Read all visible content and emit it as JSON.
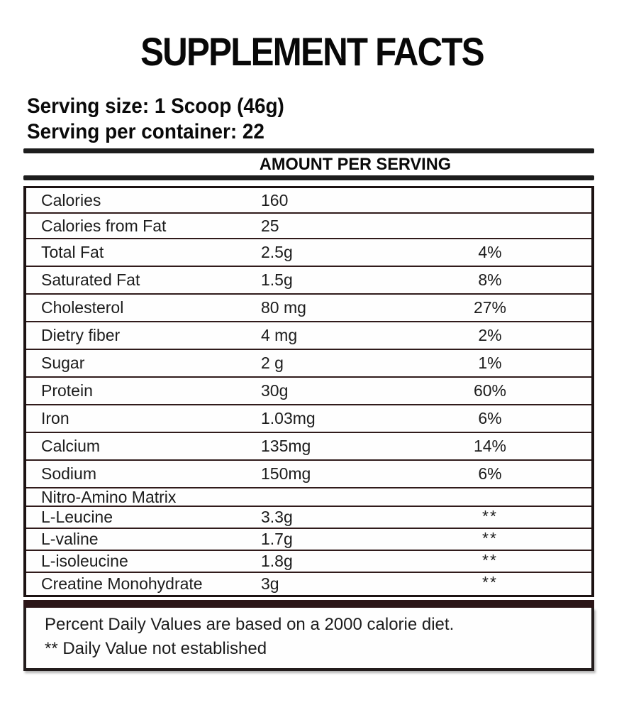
{
  "colors": {
    "background": "#ffffff",
    "rule": "#1d1d1d",
    "row_separator": "#301b1b",
    "table_border": "#1c1212",
    "thick_bar": "#2b1517",
    "text": "#1c1c1c"
  },
  "header": {
    "title": "SUPPLEMENT FACTS",
    "serving_size": "Serving size: 1 Scoop (46g)",
    "servings_per_container": "Serving per container: 22",
    "column_header": "AMOUNT PER SERVING"
  },
  "table": {
    "rows": [
      {
        "label": "Calories",
        "amount": "160",
        "daily_value": ""
      },
      {
        "label": "Calories from Fat",
        "amount": "25",
        "daily_value": ""
      },
      {
        "label": "Total Fat",
        "amount": "2.5g",
        "daily_value": "4%"
      },
      {
        "label": "Saturated Fat",
        "amount": "1.5g",
        "daily_value": "8%"
      },
      {
        "label": "Cholesterol",
        "amount": "80 mg",
        "daily_value": "27%"
      },
      {
        "label": "Dietry fiber",
        "amount": "4 mg",
        "daily_value": "2%"
      },
      {
        "label": "Sugar",
        "amount": "2 g",
        "daily_value": "1%"
      },
      {
        "label": "Protein",
        "amount": "30g",
        "daily_value": "60%"
      },
      {
        "label": "Iron",
        "amount": "1.03mg",
        "daily_value": "6%"
      },
      {
        "label": "Calcium",
        "amount": "135mg",
        "daily_value": "14%"
      },
      {
        "label": "Sodium",
        "amount": "150mg",
        "daily_value": "6%"
      },
      {
        "label": "Nitro-Amino Matrix",
        "amount": "",
        "daily_value": ""
      },
      {
        "label": "L-Leucine",
        "amount": "3.3g",
        "daily_value": "**"
      },
      {
        "label": "L-valine",
        "amount": "1.7g",
        "daily_value": "**"
      },
      {
        "label": "L-isoleucine",
        "amount": "1.8g",
        "daily_value": "**"
      },
      {
        "label": "Creatine Monohydrate",
        "amount": "3g",
        "daily_value": "**"
      }
    ]
  },
  "footnotes": {
    "daily_values": "Percent Daily Values are based on a 2000 calorie diet.",
    "not_established": "** Daily Value not established"
  }
}
